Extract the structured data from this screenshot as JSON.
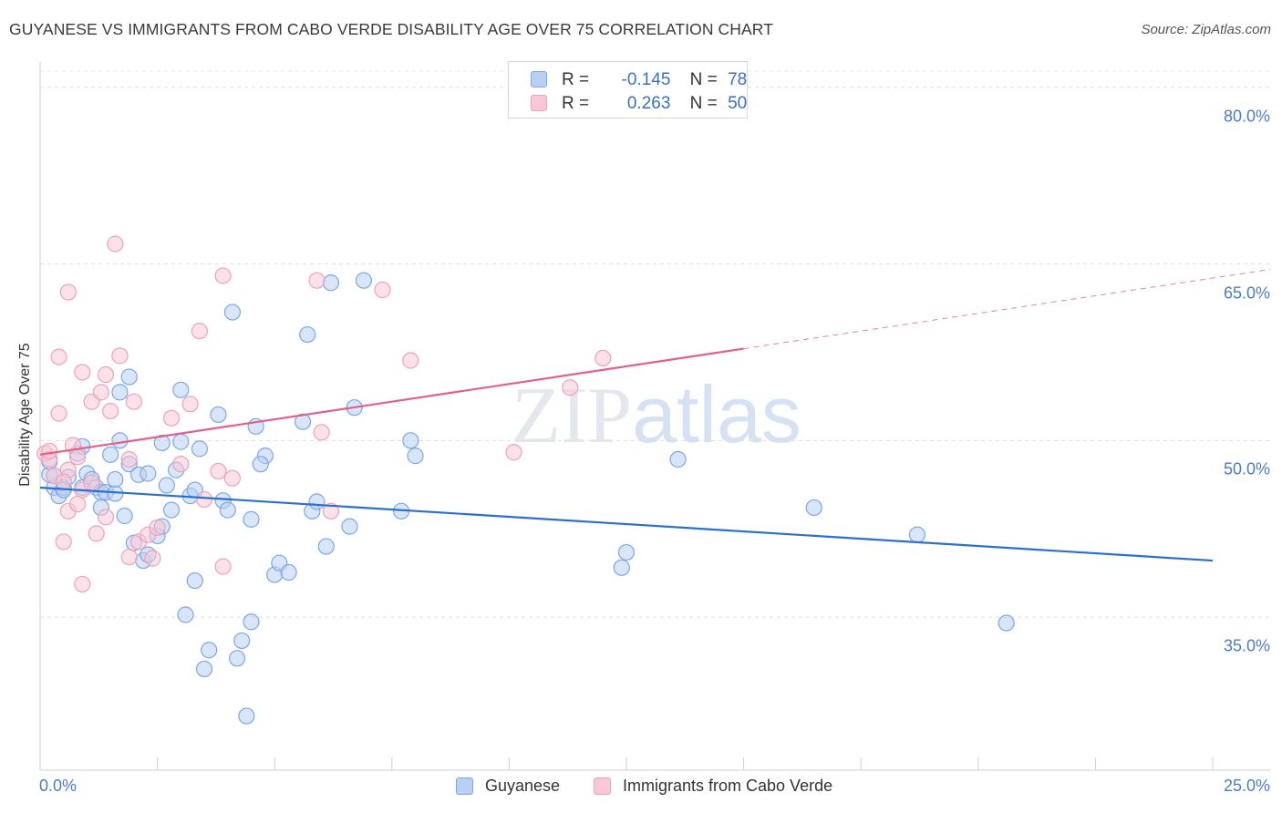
{
  "chart_data": {
    "type": "scatter",
    "title": "GUYANESE VS IMMIGRANTS FROM CABO VERDE DISABILITY AGE OVER 75 CORRELATION CHART",
    "source": "Source: ZipAtlas.com",
    "watermark": "ZIPatlas",
    "ylabel": "Disability Age Over 75",
    "xlabel": "",
    "xlim": [
      0,
      25
    ],
    "ylim": [
      22,
      82
    ],
    "x_tick_labels": [
      "0.0%",
      "25.0%"
    ],
    "y_ticks": [
      35,
      50,
      65,
      80
    ],
    "y_tick_labels": [
      "35.0%",
      "50.0%",
      "65.0%",
      "80.0%"
    ],
    "grid": true,
    "legend_stats": [
      {
        "r_label": "R =",
        "r_value": "-0.145",
        "n_label": "N =",
        "n_value": "78"
      },
      {
        "r_label": "R =",
        "r_value": "0.263",
        "n_label": "N =",
        "n_value": "50"
      }
    ],
    "series": [
      {
        "name": "Guyanese",
        "color": "#7ba6e8",
        "fill": "#b9d0f2",
        "line_color": "#2b6fcf",
        "trend": {
          "x0": 0.0,
          "y0": 46.0,
          "x1": 25.0,
          "y1": 39.8,
          "dashed_to": 25.0
        },
        "points": [
          [
            0.2,
            47.1
          ],
          [
            0.3,
            46.0
          ],
          [
            0.4,
            45.3
          ],
          [
            0.5,
            46.0
          ],
          [
            0.6,
            46.9
          ],
          [
            0.8,
            48.9
          ],
          [
            0.9,
            49.5
          ],
          [
            0.9,
            46.0
          ],
          [
            1.0,
            47.2
          ],
          [
            1.1,
            46.7
          ],
          [
            1.2,
            46.0
          ],
          [
            1.3,
            45.6
          ],
          [
            1.3,
            44.3
          ],
          [
            1.4,
            45.6
          ],
          [
            1.5,
            48.8
          ],
          [
            1.6,
            45.5
          ],
          [
            1.6,
            46.7
          ],
          [
            1.7,
            50.0
          ],
          [
            1.7,
            54.1
          ],
          [
            1.8,
            43.6
          ],
          [
            1.9,
            48.0
          ],
          [
            1.9,
            55.4
          ],
          [
            2.0,
            41.3
          ],
          [
            2.1,
            47.1
          ],
          [
            2.2,
            39.8
          ],
          [
            2.3,
            40.3
          ],
          [
            2.3,
            47.2
          ],
          [
            2.5,
            41.9
          ],
          [
            2.6,
            49.8
          ],
          [
            2.6,
            42.7
          ],
          [
            2.7,
            46.2
          ],
          [
            2.8,
            44.1
          ],
          [
            2.9,
            47.5
          ],
          [
            3.0,
            54.3
          ],
          [
            3.0,
            49.9
          ],
          [
            3.1,
            35.2
          ],
          [
            3.2,
            45.3
          ],
          [
            3.3,
            45.8
          ],
          [
            3.3,
            38.1
          ],
          [
            3.4,
            49.3
          ],
          [
            3.5,
            30.6
          ],
          [
            3.6,
            32.2
          ],
          [
            3.8,
            52.2
          ],
          [
            3.9,
            44.9
          ],
          [
            4.0,
            44.1
          ],
          [
            4.1,
            60.9
          ],
          [
            4.2,
            31.5
          ],
          [
            4.3,
            33.0
          ],
          [
            4.4,
            26.6
          ],
          [
            4.5,
            34.6
          ],
          [
            4.5,
            43.3
          ],
          [
            4.6,
            51.2
          ],
          [
            4.8,
            48.7
          ],
          [
            5.0,
            38.6
          ],
          [
            5.1,
            39.6
          ],
          [
            5.3,
            38.8
          ],
          [
            5.6,
            51.6
          ],
          [
            5.7,
            59.0
          ],
          [
            5.8,
            44.0
          ],
          [
            5.9,
            44.8
          ],
          [
            6.1,
            41.0
          ],
          [
            6.2,
            63.4
          ],
          [
            6.6,
            42.7
          ],
          [
            6.7,
            52.8
          ],
          [
            6.9,
            63.6
          ],
          [
            7.7,
            44.0
          ],
          [
            7.9,
            50.0
          ],
          [
            8.0,
            48.7
          ],
          [
            12.4,
            39.2
          ],
          [
            12.5,
            40.5
          ],
          [
            13.6,
            48.4
          ],
          [
            16.5,
            44.3
          ],
          [
            18.7,
            42.0
          ],
          [
            20.6,
            34.5
          ],
          [
            0.2,
            48.2
          ],
          [
            0.3,
            47.0
          ],
          [
            0.5,
            45.8
          ],
          [
            4.7,
            48.0
          ]
        ]
      },
      {
        "name": "Immigrants from Cabo Verde",
        "color": "#f0a0b8",
        "fill": "#f8c8d6",
        "line_color": "#e0608a",
        "trend": {
          "x0": 0.0,
          "y0": 48.8,
          "x1": 15.0,
          "y1": 57.8,
          "dashed_to": 25.0
        },
        "points": [
          [
            0.1,
            48.9
          ],
          [
            0.2,
            48.4
          ],
          [
            0.3,
            47.0
          ],
          [
            0.4,
            52.3
          ],
          [
            0.4,
            57.1
          ],
          [
            0.5,
            41.4
          ],
          [
            0.6,
            44.0
          ],
          [
            0.6,
            47.5
          ],
          [
            0.6,
            62.6
          ],
          [
            0.7,
            49.6
          ],
          [
            0.8,
            48.6
          ],
          [
            0.9,
            45.8
          ],
          [
            0.9,
            37.8
          ],
          [
            0.9,
            55.8
          ],
          [
            1.1,
            53.3
          ],
          [
            1.1,
            46.4
          ],
          [
            1.2,
            42.1
          ],
          [
            1.3,
            54.1
          ],
          [
            1.4,
            55.6
          ],
          [
            1.4,
            43.5
          ],
          [
            1.5,
            52.5
          ],
          [
            1.6,
            66.7
          ],
          [
            1.7,
            57.2
          ],
          [
            1.9,
            40.1
          ],
          [
            1.9,
            48.4
          ],
          [
            2.0,
            53.3
          ],
          [
            2.1,
            41.4
          ],
          [
            2.3,
            42.0
          ],
          [
            2.4,
            40.0
          ],
          [
            2.5,
            42.6
          ],
          [
            2.8,
            51.9
          ],
          [
            3.0,
            48.0
          ],
          [
            3.2,
            53.1
          ],
          [
            3.4,
            59.3
          ],
          [
            3.5,
            45.0
          ],
          [
            3.8,
            47.4
          ],
          [
            3.9,
            64.0
          ],
          [
            3.9,
            39.3
          ],
          [
            4.1,
            46.8
          ],
          [
            5.9,
            63.6
          ],
          [
            6.0,
            50.7
          ],
          [
            6.2,
            44.0
          ],
          [
            7.3,
            62.8
          ],
          [
            7.9,
            56.8
          ],
          [
            10.1,
            49.0
          ],
          [
            11.3,
            54.5
          ],
          [
            12.0,
            57.0
          ],
          [
            0.2,
            49.1
          ],
          [
            0.5,
            46.5
          ],
          [
            0.8,
            44.6
          ]
        ]
      }
    ]
  }
}
